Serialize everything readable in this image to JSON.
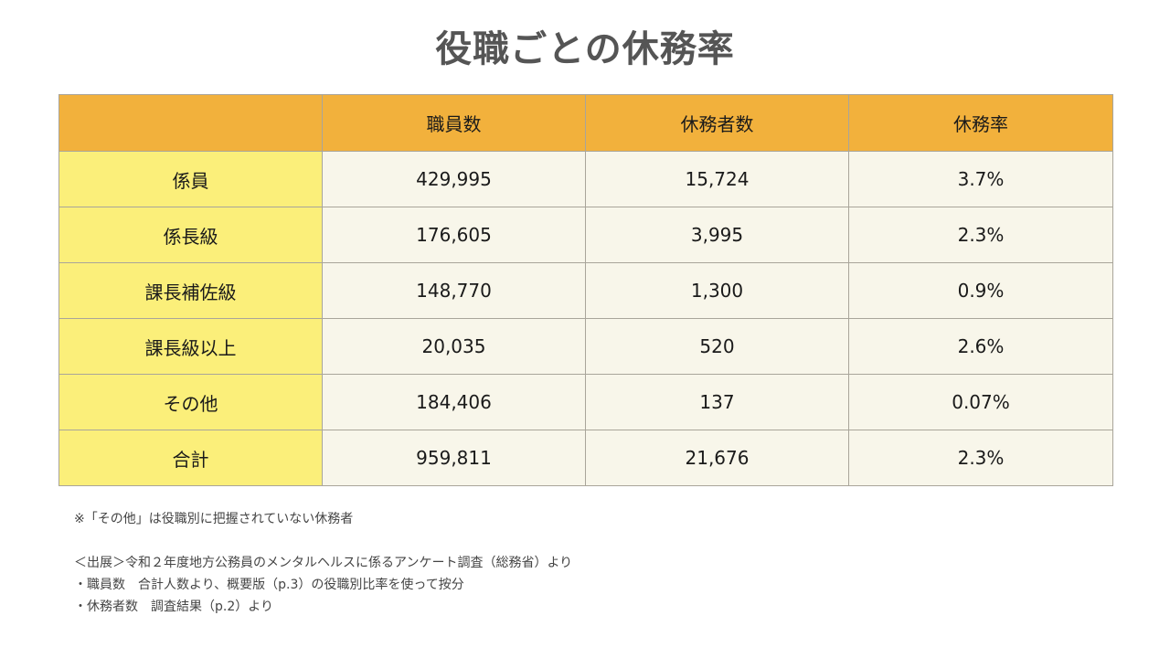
{
  "title": "役職ごとの休務率",
  "table": {
    "headers": [
      "",
      "職員数",
      "休務者数",
      "休務率"
    ],
    "rows": [
      {
        "label": "係員",
        "staff": "429,995",
        "absent": "15,724",
        "rate": "3.7%"
      },
      {
        "label": "係長級",
        "staff": "176,605",
        "absent": "3,995",
        "rate": "2.3%"
      },
      {
        "label": "課長補佐級",
        "staff": "148,770",
        "absent": "1,300",
        "rate": "0.9%"
      },
      {
        "label": "課長級以上",
        "staff": "20,035",
        "absent": "520",
        "rate": "2.6%"
      },
      {
        "label": "その他",
        "staff": "184,406",
        "absent": "137",
        "rate": "0.07%"
      },
      {
        "label": "合計",
        "staff": "959,811",
        "absent": "21,676",
        "rate": "2.3%"
      }
    ]
  },
  "notes": {
    "footnote": "※「その他」は役職別に把握されていない休務者",
    "source": "＜出展＞令和２年度地方公務員のメンタルヘルスに係るアンケート調査（総務省）より",
    "bullet1": "・職員数　合計人数より、概要版（p.3）の役職別比率を使って按分",
    "bullet2": "・休務者数　調査結果（p.2）より"
  },
  "colors": {
    "header_bg": "#f2b13c",
    "row_label_bg": "#fbef7a",
    "cell_bg": "#f8f6ea",
    "title_color": "#555555"
  }
}
